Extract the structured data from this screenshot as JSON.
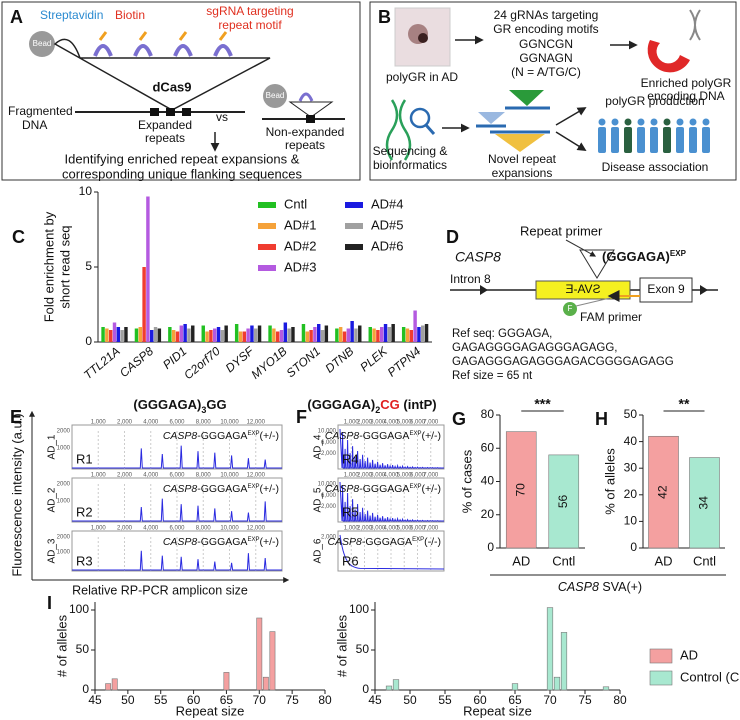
{
  "figure": {
    "A": {
      "letter": "A",
      "streptavidin": "Streptavidin",
      "biotin": "Biotin",
      "sgrna": [
        "sgRNA targeting",
        "repeat motif"
      ],
      "bead": [
        "Bead",
        "Bead"
      ],
      "dcas9": "dCas9",
      "fragmented": [
        "Fragmented",
        "DNA"
      ],
      "expanded": [
        "Expanded",
        "repeats"
      ],
      "vs": "vs",
      "non_expanded": [
        "Non-expanded",
        "repeats"
      ],
      "result": [
        "Identifying enriched repeat expansions &",
        "corresponding unique flanking sequences"
      ]
    },
    "B": {
      "letter": "B",
      "image_caption": "polyGR in AD",
      "grnas": [
        "24 gRNAs targeting",
        "GR encoding motifs",
        "GGNCGN",
        "GGNAGN",
        "(N = A/TG/C)"
      ],
      "enriched": [
        "Enriched polyGR",
        "encoding DNA"
      ],
      "sequencing": [
        "Sequencing &",
        "bioinformatics"
      ],
      "novel": [
        "Novel repeat",
        "expansions"
      ],
      "production": "polyGR production",
      "association": "Disease association"
    },
    "D": {
      "letter": "D",
      "gene": "CASP8",
      "repeat_primer": "Repeat primer",
      "motif": "(GGGAGA)",
      "motif_sup": "EXP",
      "intron": "Intron 8",
      "sva": "SVA-E",
      "exon": "Exon 9",
      "fam_circle": "F",
      "fam": "FAM primer",
      "ref_seq": [
        "Ref seq: GGGAGA,",
        "GAGAGGGGAGAGGGAGAGG,",
        "GAGAGGGAGAGGGAGACGGGGAGAGG"
      ],
      "ref_size": "Ref size = 65 nt"
    },
    "E": {
      "letter": "E",
      "title": [
        "(GGGAGA)",
        "3",
        "GG"
      ],
      "y_label": "Fluorescence intensity (a.u.)",
      "x_label": "Relative RP-PCR amplicon size",
      "traces": [
        {
          "sample": "AD_1",
          "region": "R1",
          "x_tick_labels": [
            "1,000",
            "2,000",
            "4,000",
            "6,000",
            "8,000",
            "10,000",
            "12,000"
          ],
          "y_tick_labels": [
            "2000",
            "1000"
          ],
          "label": [
            "CASP8",
            "-GGGAGA",
            "EXP",
            "(+/-)"
          ]
        },
        {
          "sample": "AD_2",
          "region": "R2",
          "x_tick_labels": [
            "1,000",
            "2,000",
            "4,000",
            "6,000",
            "8,000",
            "10,000",
            "12,000"
          ],
          "y_tick_labels": [
            "2000",
            "1000"
          ],
          "label": [
            "CASP8",
            "-GGGAGA",
            "EXP",
            "(+/-)"
          ]
        },
        {
          "sample": "AD_3",
          "region": "R3",
          "x_tick_labels": [
            "1,000",
            "2,000",
            "4,000",
            "6,000",
            "8,000",
            "10,000",
            "12,000"
          ],
          "y_tick_labels": [
            "2000",
            "1000"
          ],
          "label": [
            "CASP8",
            "-GGGAGA",
            "EXP",
            "(+/-)"
          ]
        }
      ]
    },
    "F": {
      "letter": "F",
      "title": [
        "(GGGAGA)",
        "2",
        "CG",
        " (intP)"
      ],
      "traces": [
        {
          "sample": "AD_4",
          "region": "R4",
          "x_tick_labels": [
            "1,000",
            "2,000",
            "3,000",
            "4,000",
            "5,000",
            "6,000",
            "7,000"
          ],
          "y_tick_labels": [
            "10,000",
            "6,000",
            "2,000"
          ],
          "label": [
            "CASP8",
            "-GGGAGA",
            "EXP",
            "(+/-)"
          ]
        },
        {
          "sample": "AD_5",
          "region": "R5",
          "x_tick_labels": [
            "1,000",
            "2,000",
            "3,000",
            "4,000",
            "5,000",
            "6,000",
            "7,000"
          ],
          "y_tick_labels": [
            "10,000",
            "6,000",
            "2,000"
          ],
          "label": [
            "CASP8",
            "-GGGAGA",
            "EXP",
            "(+/-)"
          ]
        },
        {
          "sample": "AD_6",
          "region": "R6",
          "x_tick_labels": [
            "1,000",
            "2,000",
            "3,000",
            "4,000",
            "5,000",
            "6,000",
            "7,000"
          ],
          "y_tick_labels": [
            "2,000"
          ],
          "label": [
            "CASP8",
            "-GGGAGA",
            "EXP",
            "(-/-)"
          ]
        }
      ]
    },
    "footer": [
      "CASP8",
      " SVA(+)"
    ]
  },
  "chart_data": [
    {
      "type": "bar",
      "panel": "C",
      "y_label": [
        "Fold enrichment by",
        "short read seq"
      ],
      "categories": [
        "TTL21A",
        "CASP8",
        "PID1",
        "C2orf70",
        "DYSF",
        "MYO1B",
        "STON1",
        "DTNB",
        "PLEK",
        "PTPN4"
      ],
      "series": [
        {
          "name": "Cntl",
          "color": "#22c022",
          "values": [
            1.0,
            0.9,
            1.0,
            1.1,
            1.2,
            1.1,
            1.2,
            0.9,
            1.0,
            1.0
          ]
        },
        {
          "name": "AD#1",
          "color": "#f5a23a",
          "values": [
            0.9,
            1.0,
            0.8,
            0.7,
            0.7,
            0.9,
            0.7,
            1.0,
            0.9,
            0.9
          ]
        },
        {
          "name": "AD#2",
          "color": "#f03c30",
          "values": [
            0.8,
            5.0,
            0.7,
            0.8,
            0.7,
            0.7,
            0.8,
            0.7,
            0.8,
            0.8
          ]
        },
        {
          "name": "AD#3",
          "color": "#b45ae0",
          "values": [
            1.3,
            9.7,
            1.1,
            0.9,
            0.9,
            0.8,
            1.0,
            0.9,
            1.0,
            2.1
          ]
        },
        {
          "name": "AD#4",
          "color": "#1a1ae0",
          "values": [
            1.0,
            0.8,
            1.2,
            1.0,
            1.1,
            1.3,
            1.2,
            1.4,
            1.2,
            1.0
          ]
        },
        {
          "name": "AD#5",
          "color": "#a0a0a0",
          "values": [
            0.8,
            1.0,
            0.9,
            0.8,
            0.9,
            0.9,
            0.8,
            0.9,
            1.0,
            1.1
          ]
        },
        {
          "name": "AD#6",
          "color": "#222222",
          "values": [
            1.0,
            0.9,
            1.1,
            1.1,
            1.1,
            1.0,
            1.1,
            1.1,
            1.2,
            1.2
          ]
        }
      ],
      "ylim": [
        0,
        10
      ],
      "yticks": [
        0,
        5,
        10
      ]
    },
    {
      "type": "bar",
      "panel": "G",
      "y_label": "% of cases",
      "categories": [
        "AD",
        "Cntl"
      ],
      "values": [
        70,
        56
      ],
      "colors": [
        "#f4a0a0",
        "#a8e8d0"
      ],
      "annotation": "***",
      "ylim": [
        0,
        80
      ],
      "yticks": [
        0,
        20,
        40,
        60,
        80
      ]
    },
    {
      "type": "bar",
      "panel": "H",
      "y_label": "% of alleles",
      "categories": [
        "AD",
        "Cntl"
      ],
      "values": [
        42,
        34
      ],
      "colors": [
        "#f4a0a0",
        "#a8e8d0"
      ],
      "annotation": "**",
      "ylim": [
        0,
        50
      ],
      "yticks": [
        0,
        10,
        20,
        30,
        40,
        50
      ]
    },
    {
      "type": "bar",
      "panel": "I",
      "x_label": "Repeat size",
      "y_label": "# of alleles",
      "x": [
        47,
        48,
        65,
        70,
        71,
        72
      ],
      "series": [
        {
          "name": "AD",
          "color": "#f4a0a0",
          "values": [
            8,
            14,
            22,
            90,
            16,
            73
          ]
        }
      ],
      "xlim": [
        45,
        80
      ],
      "xticks": [
        45,
        50,
        55,
        60,
        65,
        70,
        75,
        80
      ],
      "ylim": [
        0,
        110
      ],
      "yticks": [
        0,
        50,
        100
      ]
    },
    {
      "type": "bar",
      "x_label": "Repeat size",
      "y_label": "# of alleles",
      "x": [
        47,
        48,
        65,
        70,
        71,
        72,
        78
      ],
      "series": [
        {
          "name": "Control (Cntl)",
          "color": "#a8e8d0",
          "values": [
            5,
            13,
            8,
            103,
            16,
            72,
            4
          ]
        }
      ],
      "xlim": [
        45,
        80
      ],
      "xticks": [
        45,
        50,
        55,
        60,
        65,
        70,
        75,
        80
      ],
      "ylim": [
        0,
        110
      ],
      "yticks": [
        0,
        50,
        100
      ]
    }
  ]
}
